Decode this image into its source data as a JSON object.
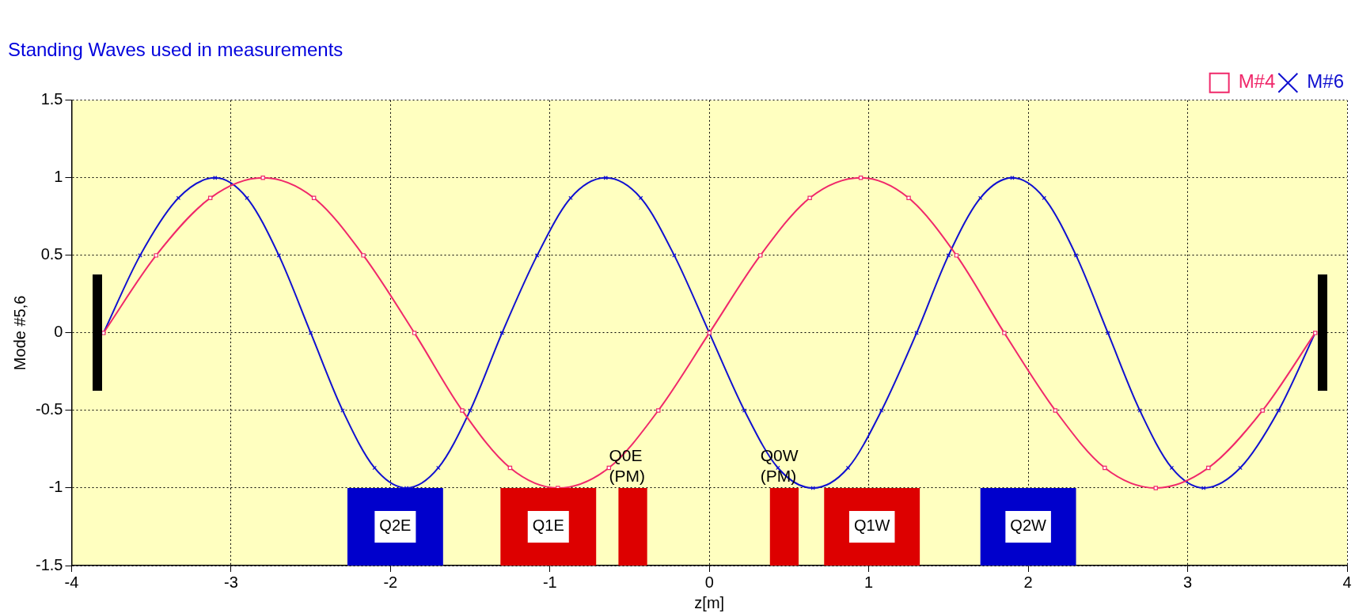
{
  "chart_data": {
    "type": "line",
    "title": "Standing Waves used in measurements",
    "xlabel": "z[m]",
    "ylabel": "Mode #5,6",
    "xlim": [
      -4,
      4
    ],
    "xticks": [
      -4,
      -3,
      -2,
      -1,
      0,
      1,
      2,
      3,
      4
    ],
    "ylim": [
      -1.5,
      1.5
    ],
    "yticks": [
      -1.5,
      -1,
      -0.5,
      0,
      0.5,
      1,
      1.5
    ],
    "grid": true,
    "legend": "top right",
    "series": [
      {
        "name": "M#4",
        "color": "#f0286a",
        "marker": "square",
        "x": [
          -3.8,
          -3.47,
          -3.13,
          -2.8,
          -2.48,
          -2.17,
          -1.85,
          -1.55,
          -1.25,
          -0.95,
          -0.63,
          -0.32,
          0,
          0.32,
          0.63,
          0.95,
          1.25,
          1.55,
          1.85,
          2.17,
          2.48,
          2.8,
          3.13,
          3.47,
          3.8
        ],
        "values": [
          0,
          0.5,
          0.87,
          1,
          0.87,
          0.5,
          0,
          -0.5,
          -0.87,
          -1,
          -0.87,
          -0.5,
          0,
          0.5,
          0.87,
          1,
          0.87,
          0.5,
          0,
          -0.5,
          -0.87,
          -1,
          -0.87,
          -0.5,
          0
        ]
      },
      {
        "name": "M#6",
        "color": "#1010d0",
        "marker": "cross",
        "x": [
          -3.8,
          -3.57,
          -3.33,
          -3.1,
          -2.9,
          -2.7,
          -2.5,
          -2.3,
          -2.1,
          -1.9,
          -1.7,
          -1.5,
          -1.3,
          -1.08,
          -0.87,
          -0.65,
          -0.43,
          -0.22,
          0,
          0.22,
          0.43,
          0.65,
          0.87,
          1.08,
          1.3,
          1.5,
          1.7,
          1.9,
          2.1,
          2.3,
          2.5,
          2.7,
          2.9,
          3.1,
          3.33,
          3.57,
          3.8
        ],
        "values": [
          0,
          0.5,
          0.87,
          1,
          0.87,
          0.5,
          0,
          -0.5,
          -0.87,
          -1,
          -0.87,
          -0.5,
          0,
          0.5,
          0.87,
          1,
          0.87,
          0.5,
          0,
          -0.5,
          -0.87,
          -1,
          -0.87,
          -0.5,
          0,
          0.5,
          0.87,
          1,
          0.87,
          0.5,
          0,
          -0.5,
          -0.87,
          -1,
          -0.87,
          -0.5,
          0
        ]
      }
    ],
    "bands": [
      {
        "axis": "x",
        "from": -2.27,
        "to": -1.67,
        "label": "Q2E",
        "color": "#0000cc"
      },
      {
        "axis": "x",
        "from": -1.31,
        "to": -0.71,
        "label": "Q1E",
        "color": "#dd0000"
      },
      {
        "axis": "x",
        "from": -0.57,
        "to": -0.39,
        "label": "Q0E (PM)",
        "color": "#dd0000"
      },
      {
        "axis": "x",
        "from": 0.38,
        "to": 0.56,
        "label": "Q0W (PM)",
        "color": "#dd0000"
      },
      {
        "axis": "x",
        "from": 0.72,
        "to": 1.32,
        "label": "Q1W",
        "color": "#dd0000"
      },
      {
        "axis": "x",
        "from": 1.7,
        "to": 2.3,
        "label": "Q2W",
        "color": "#0000cc"
      }
    ]
  }
}
